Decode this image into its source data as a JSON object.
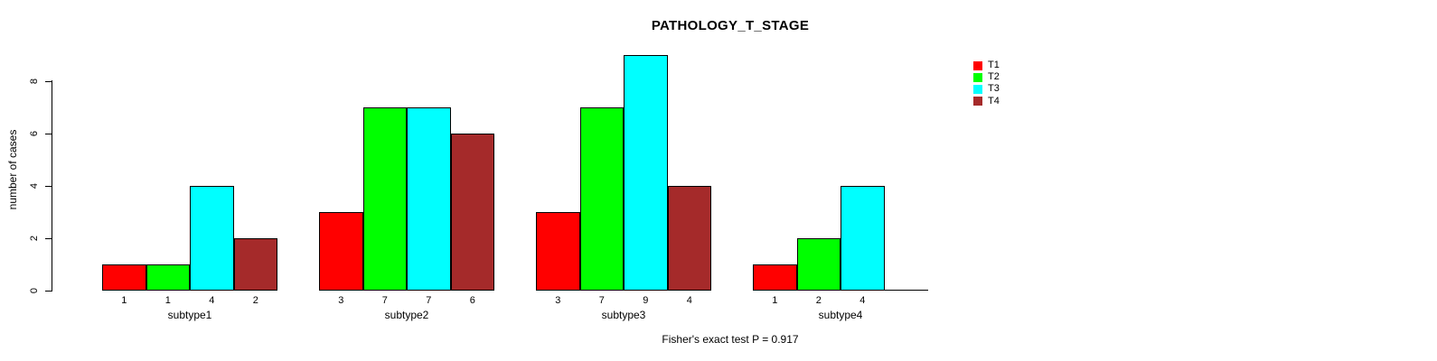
{
  "title": "PATHOLOGY_T_STAGE",
  "footer": "Fisher's exact test P = 0.917",
  "chart_data": {
    "type": "bar",
    "title": "PATHOLOGY_T_STAGE",
    "xlabel": "",
    "ylabel": "number of cases",
    "categories": [
      "subtype1",
      "subtype2",
      "subtype3",
      "subtype4"
    ],
    "series": [
      {
        "name": "T1",
        "color": "#ff0000",
        "values": [
          1,
          3,
          3,
          1
        ]
      },
      {
        "name": "T2",
        "color": "#00ff00",
        "values": [
          1,
          7,
          7,
          2
        ]
      },
      {
        "name": "T3",
        "color": "#00ffff",
        "values": [
          4,
          7,
          9,
          4
        ]
      },
      {
        "name": "T4",
        "color": "#a52a2a",
        "values": [
          2,
          6,
          4,
          0
        ]
      }
    ],
    "bar_labels": [
      [
        "1",
        "1",
        "4",
        "2"
      ],
      [
        "3",
        "7",
        "7",
        "6"
      ],
      [
        "3",
        "7",
        "9",
        "4"
      ],
      [
        "1",
        "2",
        "4",
        ""
      ]
    ],
    "yticks": [
      0,
      2,
      4,
      6,
      8
    ],
    "ylim": [
      0,
      8
    ],
    "grid": false,
    "legend_position": "top-right",
    "annotation": "Fisher's exact test P = 0.917",
    "bar_border_color": "#000000",
    "text_color": "#000000"
  }
}
